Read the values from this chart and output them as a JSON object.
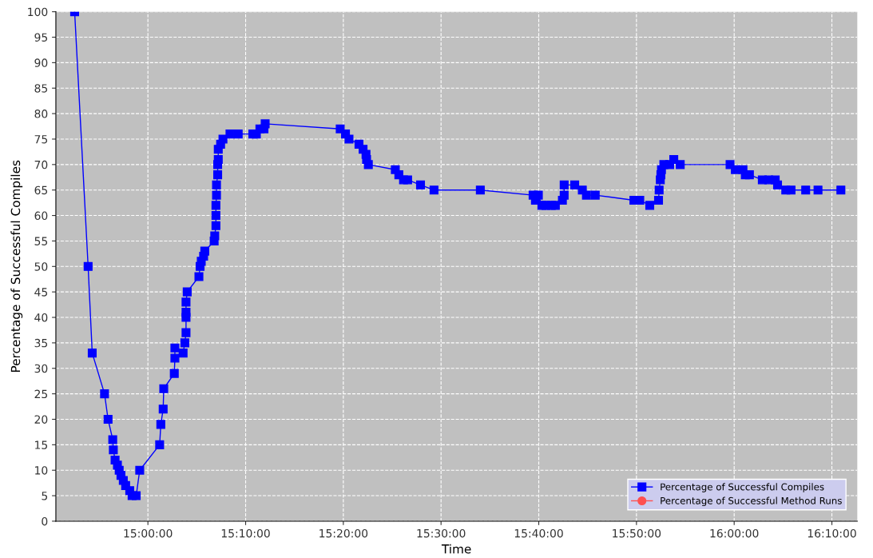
{
  "chart_data": {
    "type": "line",
    "xlabel": "Time",
    "ylabel": "Percentage of Successful Compiles",
    "xlim": [
      14.843,
      16.21
    ],
    "ylim": [
      0,
      100
    ],
    "xticks": [
      {
        "value": 15.0,
        "label": "15:00:00"
      },
      {
        "value": 15.16667,
        "label": "15:10:00"
      },
      {
        "value": 15.33333,
        "label": "15:20:00"
      },
      {
        "value": 15.5,
        "label": "15:30:00"
      },
      {
        "value": 15.66667,
        "label": "15:40:00"
      },
      {
        "value": 15.83333,
        "label": "15:50:00"
      },
      {
        "value": 16.0,
        "label": "16:00:00"
      },
      {
        "value": 16.16667,
        "label": "16:10:00"
      }
    ],
    "yticks": [
      0,
      5,
      10,
      15,
      20,
      25,
      30,
      35,
      40,
      45,
      50,
      55,
      60,
      65,
      70,
      75,
      80,
      85,
      90,
      95,
      100
    ],
    "grid": true,
    "legend": "bottom right",
    "line_style": "solid",
    "series": [
      {
        "name": "Percentage of Successful Compiles",
        "color": "#0000ff",
        "marker": "square",
        "x": [
          14.875,
          14.898,
          14.905,
          14.926,
          14.932,
          14.94,
          14.941,
          14.944,
          14.948,
          14.951,
          14.954,
          14.958,
          14.962,
          14.969,
          14.973,
          14.98,
          14.986,
          15.02,
          15.022,
          15.026,
          15.027,
          15.045,
          15.046,
          15.046,
          15.06,
          15.063,
          15.065,
          15.065,
          15.065,
          15.065,
          15.067,
          15.087,
          15.089,
          15.091,
          15.095,
          15.097,
          15.113,
          15.114,
          15.116,
          15.116,
          15.116,
          15.117,
          15.117,
          15.119,
          15.119,
          15.12,
          15.12,
          15.124,
          15.128,
          15.14,
          15.154,
          15.179,
          15.185,
          15.191,
          15.198,
          15.2,
          15.328,
          15.337,
          15.343,
          15.36,
          15.367,
          15.372,
          15.373,
          15.376,
          15.422,
          15.428,
          15.436,
          15.443,
          15.465,
          15.488,
          15.567,
          15.657,
          15.661,
          15.666,
          15.672,
          15.679,
          15.688,
          15.695,
          15.707,
          15.71,
          15.71,
          15.728,
          15.741,
          15.748,
          15.763,
          15.829,
          15.839,
          15.856,
          15.871,
          15.872,
          15.874,
          15.875,
          15.876,
          15.88,
          15.89,
          15.897,
          15.908,
          15.993,
          16.002,
          16.015,
          16.019,
          16.026,
          16.048,
          16.059,
          16.07,
          16.074,
          16.088,
          16.097,
          16.122,
          16.143,
          16.182
        ],
        "values": [
          100,
          50,
          33,
          25,
          20,
          16,
          14,
          12,
          11,
          10,
          9,
          8,
          7,
          6,
          5,
          5,
          10,
          15,
          19,
          22,
          26,
          29,
          32,
          34,
          33,
          35,
          37,
          40,
          41,
          43,
          45,
          48,
          50,
          51,
          52,
          53,
          55,
          56,
          58,
          60,
          62,
          64,
          66,
          68,
          70,
          71,
          73,
          74,
          75,
          76,
          76,
          76,
          76,
          77,
          77,
          78,
          77,
          76,
          75,
          74,
          73,
          72,
          71,
          70,
          69,
          68,
          67,
          67,
          66,
          65,
          65,
          64,
          63,
          64,
          62,
          62,
          62,
          62,
          63,
          64,
          66,
          66,
          65,
          64,
          64,
          63,
          63,
          62,
          63,
          65,
          67,
          68,
          69,
          70,
          70,
          71,
          70,
          70,
          69,
          69,
          68,
          68,
          67,
          67,
          67,
          66,
          65,
          65,
          65,
          65,
          65
        ]
      },
      {
        "name": "Percentage of Successful Method Runs",
        "color": "#ff5050",
        "marker": "circle"
      }
    ]
  }
}
